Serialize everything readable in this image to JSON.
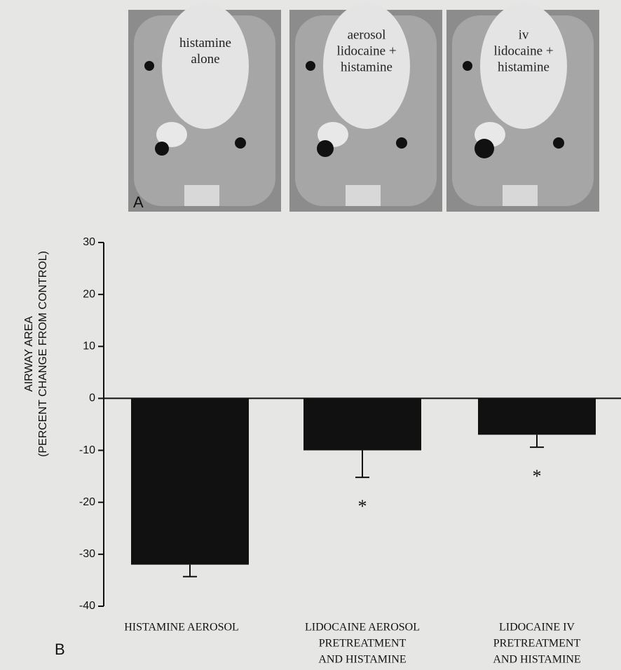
{
  "panel_a": {
    "label": "A",
    "images": [
      {
        "label": [
          "histamine",
          "alone"
        ]
      },
      {
        "label": [
          "aerosol",
          "lidocaine +",
          "histamine"
        ]
      },
      {
        "label": [
          "iv",
          "lidocaine +",
          "histamine"
        ]
      }
    ]
  },
  "chart_data": {
    "type": "bar",
    "panel_label": "B",
    "y_label": [
      "AIRWAY AREA",
      "(PERCENT CHANGE FROM CONTROL)"
    ],
    "categories": [
      [
        "HISTAMINE AEROSOL"
      ],
      [
        "LIDOCAINE AEROSOL",
        "PRETREATMENT",
        "AND HISTAMINE"
      ],
      [
        "LIDOCAINE IV",
        "PRETREATMENT",
        "AND HISTAMINE"
      ]
    ],
    "values": [
      -32,
      -10,
      -7
    ],
    "errors": [
      2.3,
      5.2,
      2.4
    ],
    "markers": [
      null,
      "*",
      "*"
    ],
    "color": "#111111",
    "ylim": [
      -40,
      30
    ],
    "yticks": [
      30,
      20,
      10,
      0,
      -10,
      -20,
      -30,
      -40
    ]
  }
}
